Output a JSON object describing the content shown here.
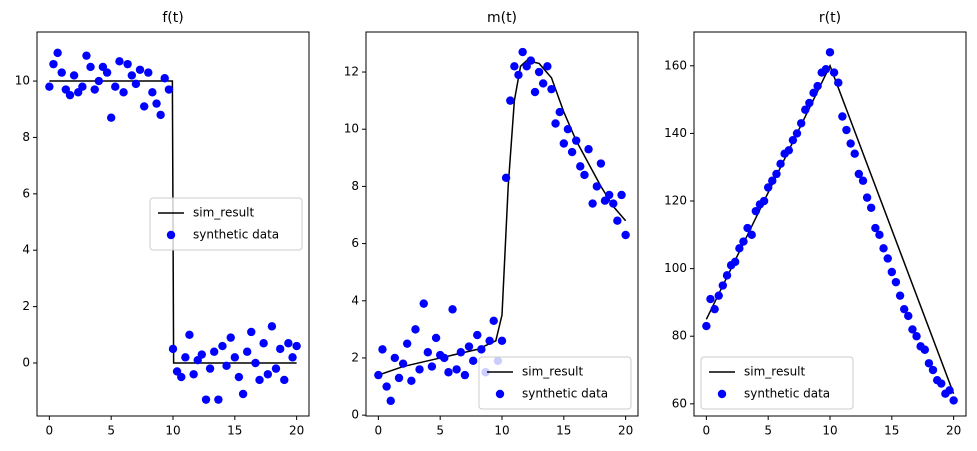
{
  "chart_data": [
    {
      "type": "line",
      "title": "f(t)",
      "xlim": [
        -1,
        21
      ],
      "xticks": [
        0,
        5,
        10,
        15,
        20
      ],
      "ylim": [
        -1.88,
        11.74
      ],
      "yticks": [
        0,
        2,
        4,
        6,
        8,
        10
      ],
      "legend": "center right",
      "series": [
        {
          "name": "sim_result",
          "color": "#000000",
          "style": "line",
          "x": [
            0,
            9.95,
            10.05,
            20
          ],
          "values": [
            10,
            10,
            0,
            0
          ]
        },
        {
          "name": "synthetic data",
          "color": "#0000ff",
          "style": "markers",
          "x": [
            0,
            0.33,
            0.67,
            1,
            1.33,
            1.67,
            2,
            2.33,
            2.67,
            3,
            3.33,
            3.67,
            4,
            4.33,
            4.67,
            5,
            5.33,
            5.67,
            6,
            6.33,
            6.67,
            7,
            7.33,
            7.67,
            8,
            8.33,
            8.67,
            9,
            9.33,
            9.67,
            10,
            10.33,
            10.67,
            11,
            11.33,
            11.67,
            12,
            12.33,
            12.67,
            13,
            13.33,
            13.67,
            14,
            14.33,
            14.67,
            15,
            15.33,
            15.67,
            16,
            16.33,
            16.67,
            17,
            17.33,
            17.67,
            18,
            18.33,
            18.67,
            19,
            19.33,
            19.67,
            20
          ],
          "values": [
            9.8,
            10.6,
            11.0,
            10.3,
            9.7,
            9.5,
            10.2,
            9.6,
            9.8,
            10.9,
            10.5,
            9.7,
            10.0,
            10.5,
            10.3,
            8.7,
            9.8,
            10.7,
            9.6,
            10.6,
            10.2,
            9.9,
            10.4,
            9.1,
            10.3,
            9.6,
            9.2,
            8.8,
            10.1,
            9.7,
            0.5,
            -0.3,
            -0.5,
            0.2,
            1.0,
            -0.4,
            0.1,
            0.3,
            -1.3,
            -0.2,
            0.4,
            -1.3,
            0.6,
            -0.1,
            0.9,
            0.2,
            -0.5,
            -1.1,
            0.4,
            1.1,
            0.0,
            -0.6,
            0.7,
            -0.4,
            1.3,
            -0.2,
            0.5,
            -0.6,
            0.7,
            0.2,
            0.6
          ]
        }
      ]
    },
    {
      "type": "line",
      "title": "m(t)",
      "xlim": [
        -1,
        21
      ],
      "xticks": [
        0,
        5,
        10,
        15,
        20
      ],
      "ylim": [
        -0.03,
        13.4
      ],
      "yticks": [
        0,
        2,
        4,
        6,
        8,
        10,
        12
      ],
      "legend": "lower right",
      "series": [
        {
          "name": "sim_result",
          "color": "#000000",
          "style": "line",
          "x": [
            0,
            2,
            4,
            6,
            8,
            9.5,
            10,
            10.5,
            11,
            11.5,
            12,
            13,
            14,
            15,
            16,
            17,
            18,
            19,
            20
          ],
          "values": [
            1.4,
            1.7,
            1.9,
            2.1,
            2.3,
            2.6,
            3.5,
            8,
            11,
            12.2,
            12.4,
            12.3,
            11.8,
            10.6,
            9.6,
            8.8,
            8,
            7.3,
            6.8
          ]
        },
        {
          "name": "synthetic data",
          "color": "#0000ff",
          "style": "markers",
          "x": [
            0,
            0.33,
            0.67,
            1,
            1.33,
            1.67,
            2,
            2.33,
            2.67,
            3,
            3.33,
            3.67,
            4,
            4.33,
            4.67,
            5,
            5.33,
            5.67,
            6,
            6.33,
            6.67,
            7,
            7.33,
            7.67,
            8,
            8.33,
            8.67,
            9,
            9.33,
            9.67,
            10,
            10.33,
            10.67,
            11,
            11.33,
            11.67,
            12,
            12.33,
            12.67,
            13,
            13.33,
            13.67,
            14,
            14.33,
            14.67,
            15,
            15.33,
            15.67,
            16,
            16.33,
            16.67,
            17,
            17.33,
            17.67,
            18,
            18.33,
            18.67,
            19,
            19.33,
            19.67,
            20
          ],
          "values": [
            1.4,
            2.3,
            1.0,
            0.5,
            2.0,
            1.3,
            1.8,
            2.5,
            1.2,
            3.0,
            1.6,
            3.9,
            2.2,
            1.7,
            2.7,
            2.1,
            2.0,
            1.5,
            3.7,
            1.6,
            2.2,
            1.4,
            2.4,
            1.9,
            2.8,
            2.3,
            1.5,
            2.6,
            3.3,
            1.9,
            2.6,
            8.3,
            11.0,
            12.2,
            11.9,
            12.7,
            12.2,
            12.4,
            11.3,
            12.0,
            11.6,
            12.2,
            11.4,
            10.2,
            10.6,
            9.5,
            10.0,
            9.2,
            9.6,
            8.7,
            8.4,
            9.3,
            7.4,
            8.0,
            8.8,
            7.5,
            7.7,
            7.4,
            6.8,
            7.7,
            6.3
          ]
        }
      ]
    },
    {
      "type": "line",
      "title": "r(t)",
      "xlim": [
        -1,
        21
      ],
      "xticks": [
        0,
        5,
        10,
        15,
        20
      ],
      "ylim": [
        56.4,
        170
      ],
      "yticks": [
        60,
        80,
        100,
        120,
        140,
        160
      ],
      "legend": "lower left",
      "series": [
        {
          "name": "sim_result",
          "color": "#000000",
          "style": "line",
          "x": [
            0,
            10,
            20
          ],
          "values": [
            85,
            160,
            63
          ]
        },
        {
          "name": "synthetic data",
          "color": "#0000ff",
          "style": "markers",
          "x": [
            0,
            0.33,
            0.67,
            1,
            1.33,
            1.67,
            2,
            2.33,
            2.67,
            3,
            3.33,
            3.67,
            4,
            4.33,
            4.67,
            5,
            5.33,
            5.67,
            6,
            6.33,
            6.67,
            7,
            7.33,
            7.67,
            8,
            8.33,
            8.67,
            9,
            9.33,
            9.67,
            10,
            10.33,
            10.67,
            11,
            11.33,
            11.67,
            12,
            12.33,
            12.67,
            13,
            13.33,
            13.67,
            14,
            14.33,
            14.67,
            15,
            15.33,
            15.67,
            16,
            16.33,
            16.67,
            17,
            17.33,
            17.67,
            18,
            18.33,
            18.67,
            19,
            19.33,
            19.67,
            20
          ],
          "values": [
            83,
            91,
            88,
            92,
            95,
            98,
            101,
            102,
            106,
            108,
            112,
            110,
            117,
            119,
            120,
            124,
            126,
            128,
            131,
            134,
            135,
            138,
            140,
            143,
            147,
            149,
            152,
            154,
            158,
            159,
            164,
            158,
            155,
            145,
            141,
            137,
            134,
            128,
            126,
            121,
            118,
            112,
            110,
            106,
            103,
            99,
            96,
            92,
            88,
            86,
            82,
            80,
            77,
            76,
            72,
            70,
            67,
            66,
            63,
            64,
            61
          ]
        }
      ]
    }
  ]
}
